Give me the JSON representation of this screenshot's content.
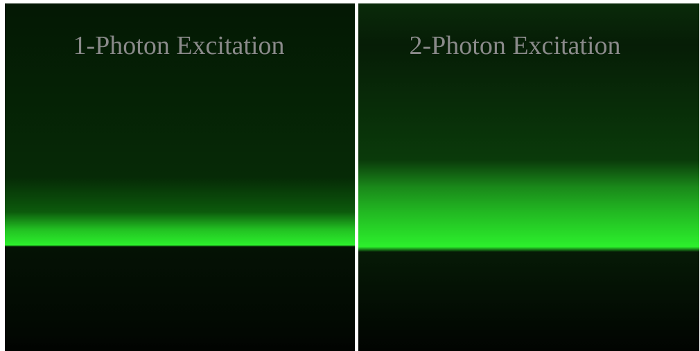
{
  "panels": [
    {
      "label": "1-Photon Excitation"
    },
    {
      "label": "2-Photon Excitation"
    }
  ]
}
